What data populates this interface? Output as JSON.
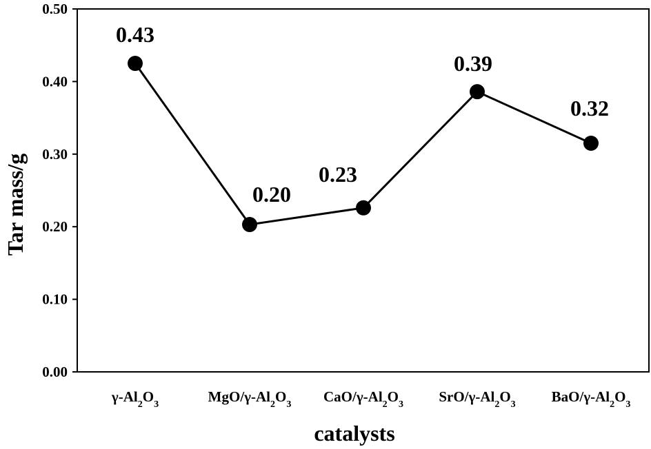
{
  "chart_data": {
    "type": "line",
    "categories": [
      "γ-Al2O3",
      "MgO/γ-Al2O3",
      "CaO/γ-Al2O3",
      "SrO/γ-Al2O3",
      "BaO/γ-Al2O3"
    ],
    "category_parts": [
      [
        {
          "t": "γ-Al"
        },
        {
          "t": "2",
          "sub": true
        },
        {
          "t": "O"
        },
        {
          "t": "3",
          "sub": true
        }
      ],
      [
        {
          "t": "MgO/γ-Al"
        },
        {
          "t": "2",
          "sub": true
        },
        {
          "t": "O"
        },
        {
          "t": "3",
          "sub": true
        }
      ],
      [
        {
          "t": "CaO/γ-Al"
        },
        {
          "t": "2",
          "sub": true
        },
        {
          "t": "O"
        },
        {
          "t": "3",
          "sub": true
        }
      ],
      [
        {
          "t": "SrO/γ-Al"
        },
        {
          "t": "2",
          "sub": true
        },
        {
          "t": "O"
        },
        {
          "t": "3",
          "sub": true
        }
      ],
      [
        {
          "t": "BaO/γ-Al"
        },
        {
          "t": "2",
          "sub": true
        },
        {
          "t": "O"
        },
        {
          "t": "3",
          "sub": true
        }
      ]
    ],
    "values": [
      0.425,
      0.203,
      0.226,
      0.386,
      0.315
    ],
    "data_labels": [
      "0.43",
      "0.20",
      "0.23",
      "0.39",
      "0.32"
    ],
    "xlabel": "catalysts",
    "ylabel": "Tar mass/g",
    "ylim": [
      0,
      0.5
    ],
    "yticks": [
      0,
      0.1,
      0.2,
      0.3,
      0.4,
      0.5
    ],
    "ytick_labels": [
      "0.00",
      "0.10",
      "0.20",
      "0.30",
      "0.40",
      "0.50"
    ],
    "grid": false,
    "marker": "filled-circle",
    "color": "#000000"
  }
}
